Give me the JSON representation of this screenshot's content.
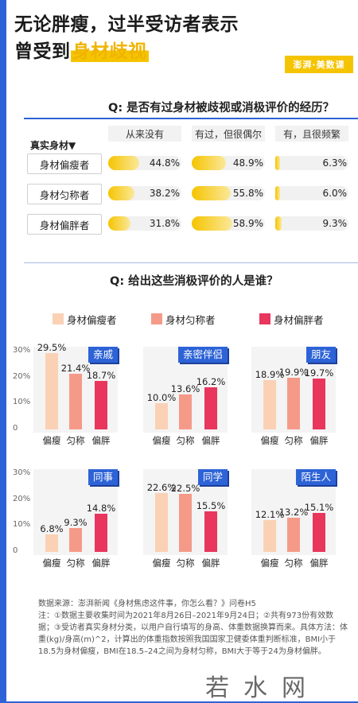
{
  "title": {
    "line1": "无论胖瘦，过半受访者表示",
    "line2_prefix": "曾受到",
    "line2_highlight": "身材歧视"
  },
  "logo": "澎湃·美数课",
  "q1": {
    "question": "Q:  是否有过身材被歧视或消极评价的经历？",
    "row_header": "真实身材▼",
    "columns": [
      "从来没有",
      "有过，但很偶尔",
      "有，且很频繁"
    ],
    "rows": [
      {
        "label": "身材偏瘦者",
        "values": [
          44.8,
          48.9,
          6.3
        ],
        "texts": [
          "44.8%",
          "48.9%",
          "6.3%"
        ]
      },
      {
        "label": "身材匀称者",
        "values": [
          38.2,
          55.8,
          6.0
        ],
        "texts": [
          "38.2%",
          "55.8%",
          "6.0%"
        ]
      },
      {
        "label": "身材偏胖者",
        "values": [
          31.8,
          58.9,
          9.3
        ],
        "texts": [
          "31.8%",
          "58.9%",
          "9.3%"
        ]
      }
    ]
  },
  "q2": {
    "question": "Q:  给出这些消极评价的人是谁？",
    "legend": [
      {
        "name": "身材偏瘦者",
        "color": "#fbd1b5"
      },
      {
        "name": "身材匀称者",
        "color": "#f59a88"
      },
      {
        "name": "身材偏胖者",
        "color": "#e8365d"
      }
    ]
  },
  "chart_data": [
    {
      "type": "bar",
      "title": "亲戚",
      "categories": [
        "偏瘦",
        "匀称",
        "偏胖"
      ],
      "values": [
        29.5,
        21.4,
        18.7
      ],
      "labels": [
        "29.5%",
        "21.4%",
        "18.7%"
      ],
      "yticks": [
        "30%",
        "20%",
        "10%",
        "0"
      ],
      "ylim": [
        0,
        30
      ]
    },
    {
      "type": "bar",
      "title": "亲密伴侣",
      "categories": [
        "偏瘦",
        "匀称",
        "偏胖"
      ],
      "values": [
        10.0,
        13.6,
        16.2
      ],
      "labels": [
        "10.0%",
        "13.6%",
        "16.2%"
      ],
      "ylim": [
        0,
        30
      ]
    },
    {
      "type": "bar",
      "title": "朋友",
      "categories": [
        "偏瘦",
        "匀称",
        "偏胖"
      ],
      "values": [
        18.9,
        19.9,
        19.7
      ],
      "labels": [
        "18.9%",
        "19.9%",
        "19.7%"
      ],
      "ylim": [
        0,
        30
      ]
    },
    {
      "type": "bar",
      "title": "同事",
      "categories": [
        "偏瘦",
        "匀称",
        "偏胖"
      ],
      "values": [
        6.8,
        9.3,
        14.8
      ],
      "labels": [
        "6.8%",
        "9.3%",
        "14.8%"
      ],
      "yticks": [
        "30%",
        "20%",
        "10%",
        "0"
      ],
      "ylim": [
        0,
        30
      ]
    },
    {
      "type": "bar",
      "title": "同学",
      "categories": [
        "偏瘦",
        "匀称",
        "偏胖"
      ],
      "values": [
        22.6,
        22.5,
        15.5
      ],
      "labels": [
        "22.6%",
        "22.5%",
        "15.5%"
      ],
      "ylim": [
        0,
        30
      ]
    },
    {
      "type": "bar",
      "title": "陌生人",
      "categories": [
        "偏瘦",
        "匀称",
        "偏胖"
      ],
      "values": [
        12.1,
        13.2,
        15.1
      ],
      "labels": [
        "12.1%",
        "13.2%",
        "15.1%"
      ],
      "ylim": [
        0,
        30
      ]
    }
  ],
  "source": {
    "line1": "数据来源：澎湃新闻《身材焦虑这件事，你怎么看？》问卷H5",
    "notes": "注：①数据主要收集时间为2021年8月26日–2021年9月24日；②共有973份有效数据；③受访者真实身材分类，以用户自行填写的身高、体重数据换算而来。具体方法：体重(kg)/身高(m)^2，计算出的体重指数按照我国国家卫健委体重判断标准，BMI小于18.5为身材偏瘦，BMI在18.5–24之间为身材匀称，BMI大于等于24为身材偏胖。"
  },
  "watermark": "若水网"
}
